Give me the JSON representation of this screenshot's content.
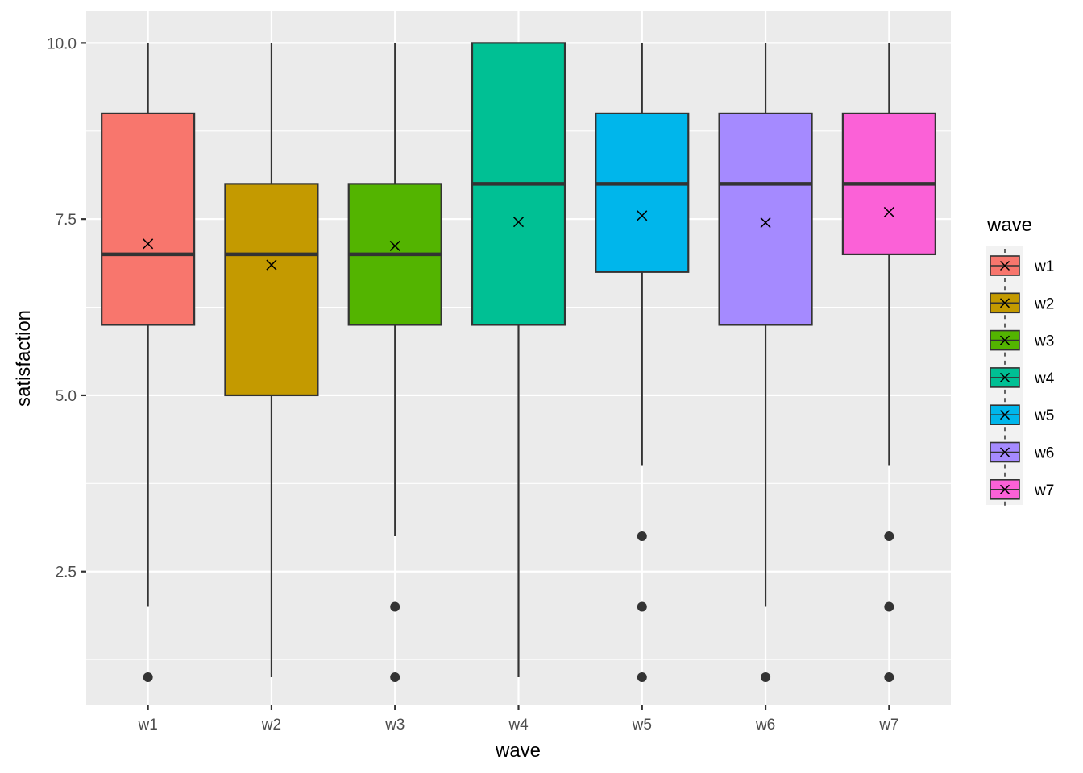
{
  "chart_data": {
    "type": "box",
    "xlabel": "wave",
    "ylabel": "satisfaction",
    "ylim": [
      0.6,
      10.45
    ],
    "yticks": [
      2.5,
      5.0,
      7.5,
      10.0
    ],
    "ytick_labels": [
      "2.5",
      "5.0",
      "7.5",
      "10.0"
    ],
    "ygrid_minor": [
      1.25,
      3.75,
      6.25,
      8.75
    ],
    "grid": true,
    "legend": {
      "title": "wave",
      "placement": "right"
    },
    "categories": [
      "w1",
      "w2",
      "w3",
      "w4",
      "w5",
      "w6",
      "w7"
    ],
    "colors": [
      "#F8766D",
      "#C49A00",
      "#53B400",
      "#00C094",
      "#00B6EB",
      "#A58AFF",
      "#FB61D7"
    ],
    "boxes": [
      {
        "name": "w1",
        "whisker_low": 2,
        "q1": 6,
        "median": 7,
        "q3": 9,
        "whisker_high": 10,
        "mean": 7.15,
        "outliers": [
          1
        ]
      },
      {
        "name": "w2",
        "whisker_low": 1,
        "q1": 5,
        "median": 7,
        "q3": 8,
        "whisker_high": 10,
        "mean": 6.85,
        "outliers": []
      },
      {
        "name": "w3",
        "whisker_low": 3,
        "q1": 6,
        "median": 7,
        "q3": 8,
        "whisker_high": 10,
        "mean": 7.12,
        "outliers": [
          2,
          1
        ]
      },
      {
        "name": "w4",
        "whisker_low": 1,
        "q1": 6,
        "median": 8,
        "q3": 10,
        "whisker_high": 10,
        "mean": 7.46,
        "outliers": []
      },
      {
        "name": "w5",
        "whisker_low": 4,
        "q1": 6.75,
        "median": 8,
        "q3": 9,
        "whisker_high": 10,
        "mean": 7.55,
        "outliers": [
          3,
          2,
          1
        ]
      },
      {
        "name": "w6",
        "whisker_low": 2,
        "q1": 6,
        "median": 8,
        "q3": 9,
        "whisker_high": 10,
        "mean": 7.45,
        "outliers": [
          1
        ]
      },
      {
        "name": "w7",
        "whisker_low": 4,
        "q1": 7,
        "median": 8,
        "q3": 9,
        "whisker_high": 10,
        "mean": 7.6,
        "outliers": [
          3,
          2,
          1
        ]
      }
    ]
  }
}
